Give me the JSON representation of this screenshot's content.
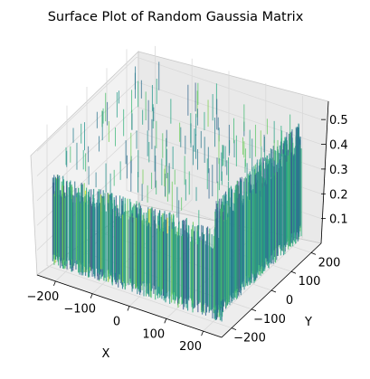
{
  "chart_data": {
    "type": "surface",
    "title": "Surface Plot of Random Gaussia Matrix",
    "xlabel": "X",
    "ylabel": "Y",
    "zlabel": "",
    "xlim": [
      -250,
      250
    ],
    "ylim": [
      -250,
      250
    ],
    "zlim": [
      0,
      0.57
    ],
    "x_ticks": [
      "−200",
      "−100",
      "0",
      "100",
      "200"
    ],
    "y_ticks": [
      "−200",
      "−100",
      "0",
      "100",
      "200"
    ],
    "z_ticks": [
      "0.1",
      "0.2",
      "0.3",
      "0.4",
      "0.5"
    ],
    "colormap": "viridis",
    "value_range": [
      0,
      0.55
    ],
    "grid": true,
    "pane_color": "#f2f2f2",
    "grid_color": "#d9d9d9"
  }
}
